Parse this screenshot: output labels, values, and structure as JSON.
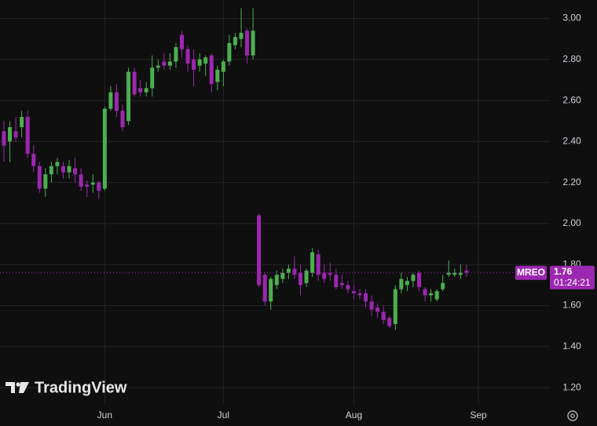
{
  "chart_data": {
    "type": "candlestick",
    "symbol": "MREO",
    "last_price": 1.76,
    "countdown": "01:24:21",
    "watermark": "TradingView",
    "up_color": "#4caf50",
    "down_color": "#9c27b0",
    "grid": true,
    "ylim": [
      1.12,
      3.09
    ],
    "yticks": [
      {
        "value": 1.2,
        "label": "1.20"
      },
      {
        "value": 1.4,
        "label": "1.40"
      },
      {
        "value": 1.6,
        "label": "1.60"
      },
      {
        "value": 1.8,
        "label": "1.80"
      },
      {
        "value": 2,
        "label": "2.00"
      },
      {
        "value": 2.2,
        "label": "2.20"
      },
      {
        "value": 2.4,
        "label": "2.40"
      },
      {
        "value": 2.6,
        "label": "2.60"
      },
      {
        "value": 2.8,
        "label": "2.80"
      },
      {
        "value": 3,
        "label": "3.00"
      }
    ],
    "categories": [
      null,
      null,
      null,
      null,
      null,
      null,
      null,
      null,
      null,
      null,
      null,
      null,
      null,
      null,
      null,
      null,
      null,
      "Jun",
      null,
      null,
      null,
      null,
      null,
      null,
      null,
      null,
      null,
      null,
      null,
      null,
      null,
      null,
      null,
      null,
      null,
      null,
      null,
      "Jul",
      null,
      null,
      null,
      null,
      null,
      null,
      null,
      null,
      null,
      null,
      null,
      null,
      null,
      null,
      null,
      null,
      null,
      null,
      null,
      null,
      null,
      "Aug",
      null,
      null,
      null,
      null,
      null,
      null,
      null,
      null,
      null,
      null,
      null,
      null,
      null,
      null,
      null,
      null,
      null,
      null,
      null,
      null,
      "Sep"
    ],
    "open": [
      2.45,
      2.4,
      2.45,
      2.47,
      2.52,
      2.34,
      2.28,
      2.17,
      2.24,
      2.28,
      2.28,
      2.25,
      2.27,
      2.24,
      2.19,
      2.19,
      2.2,
      2.17,
      2.56,
      2.64,
      2.55,
      2.5,
      2.74,
      2.66,
      2.64,
      2.66,
      2.76,
      2.79,
      2.77,
      2.79,
      2.92,
      2.85,
      2.8,
      2.77,
      2.78,
      2.82,
      2.69,
      2.74,
      2.79,
      2.87,
      2.9,
      2.94,
      2.82,
      2.04,
      1.75,
      1.62,
      1.7,
      1.73,
      1.76,
      1.78,
      1.76,
      1.71,
      1.76,
      1.85,
      1.76,
      1.76,
      1.75,
      1.71,
      1.7,
      1.67,
      1.66,
      1.66,
      1.62,
      1.59,
      1.57,
      1.54,
      1.51,
      1.68,
      1.7,
      1.72,
      1.76,
      1.68,
      1.65,
      1.63,
      1.68,
      1.75,
      1.75,
      1.75,
      1.77,
      null,
      null
    ],
    "high": [
      2.5,
      2.5,
      2.52,
      2.55,
      2.55,
      2.38,
      2.3,
      2.27,
      2.3,
      2.32,
      2.3,
      2.31,
      2.32,
      2.27,
      2.21,
      2.24,
      2.21,
      2.57,
      2.67,
      2.68,
      2.58,
      2.76,
      2.76,
      2.7,
      2.69,
      2.82,
      2.8,
      2.83,
      2.83,
      2.88,
      2.94,
      2.87,
      2.85,
      2.83,
      2.82,
      2.83,
      2.77,
      2.8,
      2.92,
      2.93,
      3.05,
      2.95,
      3.05,
      2.05,
      1.76,
      1.74,
      1.77,
      1.78,
      1.8,
      1.84,
      1.8,
      1.78,
      1.88,
      1.87,
      1.8,
      1.81,
      1.78,
      1.75,
      1.72,
      1.7,
      1.68,
      1.68,
      1.65,
      1.61,
      1.6,
      1.55,
      1.7,
      1.76,
      1.74,
      1.76,
      1.77,
      1.69,
      1.68,
      1.68,
      1.75,
      1.82,
      1.78,
      1.8,
      1.8,
      null,
      null
    ],
    "low": [
      2.3,
      2.3,
      2.4,
      2.42,
      2.32,
      2.25,
      2.15,
      2.13,
      2.2,
      2.24,
      2.22,
      2.22,
      2.2,
      2.16,
      2.13,
      2.15,
      2.12,
      2.16,
      2.55,
      2.52,
      2.45,
      2.48,
      2.62,
      2.62,
      2.62,
      2.62,
      2.74,
      2.75,
      2.75,
      2.76,
      2.81,
      2.74,
      2.67,
      2.74,
      2.72,
      2.64,
      2.65,
      2.67,
      2.77,
      2.85,
      2.86,
      2.78,
      2.8,
      1.69,
      1.6,
      1.58,
      1.68,
      1.71,
      1.73,
      1.73,
      1.65,
      1.69,
      1.74,
      1.72,
      1.71,
      1.72,
      1.68,
      1.68,
      1.66,
      1.63,
      1.63,
      1.59,
      1.55,
      1.54,
      1.51,
      1.49,
      1.48,
      1.66,
      1.67,
      1.69,
      1.67,
      1.62,
      1.62,
      1.62,
      1.67,
      1.74,
      1.74,
      1.73,
      1.74,
      null,
      null
    ],
    "close": [
      2.38,
      2.47,
      2.42,
      2.52,
      2.34,
      2.28,
      2.17,
      2.24,
      2.28,
      2.3,
      2.25,
      2.28,
      2.24,
      2.18,
      2.18,
      2.2,
      2.16,
      2.56,
      2.64,
      2.55,
      2.47,
      2.74,
      2.63,
      2.64,
      2.66,
      2.76,
      2.77,
      2.77,
      2.79,
      2.86,
      2.85,
      2.78,
      2.75,
      2.8,
      2.81,
      2.68,
      2.75,
      2.79,
      2.88,
      2.91,
      2.93,
      2.82,
      2.94,
      1.7,
      1.62,
      1.73,
      1.75,
      1.76,
      1.78,
      1.75,
      1.7,
      1.77,
      1.86,
      1.75,
      1.73,
      1.75,
      1.69,
      1.7,
      1.68,
      1.66,
      1.65,
      1.62,
      1.58,
      1.57,
      1.53,
      1.5,
      1.68,
      1.73,
      1.72,
      1.75,
      1.69,
      1.65,
      1.66,
      1.67,
      1.71,
      1.76,
      1.76,
      1.76,
      1.76,
      null,
      null
    ]
  }
}
